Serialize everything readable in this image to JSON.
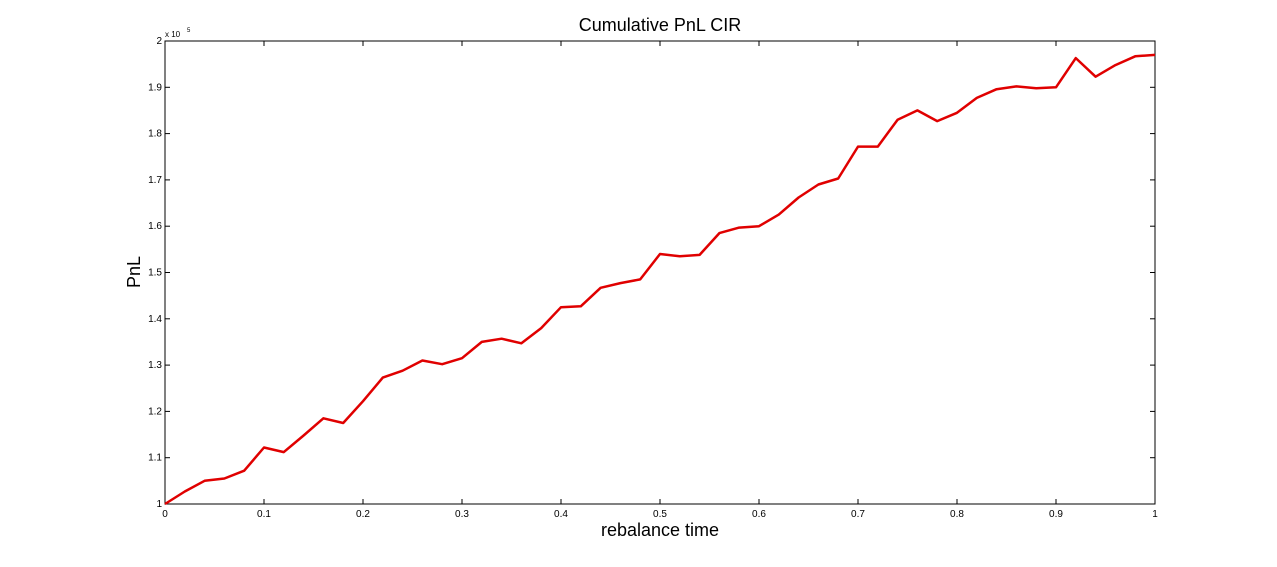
{
  "chart_data": {
    "type": "line",
    "title": "Cumulative PnL CIR",
    "xlabel": "rebalance time",
    "ylabel": "PnL",
    "y_multiplier_label": "x 10",
    "y_multiplier_exponent": "5",
    "xlim": [
      0,
      1
    ],
    "ylim": [
      1.0,
      2.0
    ],
    "grid": false,
    "x_ticks": [
      "0",
      "0.1",
      "0.2",
      "0.3",
      "0.4",
      "0.5",
      "0.6",
      "0.7",
      "0.8",
      "0.9",
      "1"
    ],
    "y_ticks": [
      "1",
      "1.1",
      "1.2",
      "1.3",
      "1.4",
      "1.5",
      "1.6",
      "1.7",
      "1.8",
      "1.9",
      "2"
    ],
    "line_color": "#e00000",
    "series": [
      {
        "x": [
          0,
          0.02,
          0.04,
          0.06,
          0.08,
          0.1,
          0.12,
          0.14,
          0.16,
          0.18,
          0.2,
          0.22,
          0.24,
          0.26,
          0.28,
          0.3,
          0.32,
          0.34,
          0.36,
          0.38,
          0.4,
          0.42,
          0.44,
          0.46,
          0.48,
          0.5,
          0.52,
          0.54,
          0.56,
          0.58,
          0.6,
          0.62,
          0.64,
          0.66,
          0.68,
          0.7,
          0.72,
          0.74,
          0.76,
          0.78,
          0.8,
          0.82,
          0.84,
          0.86,
          0.88,
          0.9,
          0.92,
          0.94,
          0.96,
          0.98,
          1.0
        ],
        "values": [
          1.0,
          1.027,
          1.05,
          1.055,
          1.072,
          1.122,
          1.112,
          1.148,
          1.185,
          1.175,
          1.222,
          1.273,
          1.288,
          1.31,
          1.302,
          1.315,
          1.35,
          1.357,
          1.347,
          1.38,
          1.425,
          1.427,
          1.467,
          1.477,
          1.485,
          1.54,
          1.535,
          1.538,
          1.585,
          1.597,
          1.6,
          1.625,
          1.662,
          1.69,
          1.703,
          1.772,
          1.772,
          1.83,
          1.85,
          1.827,
          1.845,
          1.877,
          1.896,
          1.902,
          1.898,
          1.9,
          1.963,
          1.923,
          1.948,
          1.967,
          1.97
        ]
      }
    ]
  }
}
